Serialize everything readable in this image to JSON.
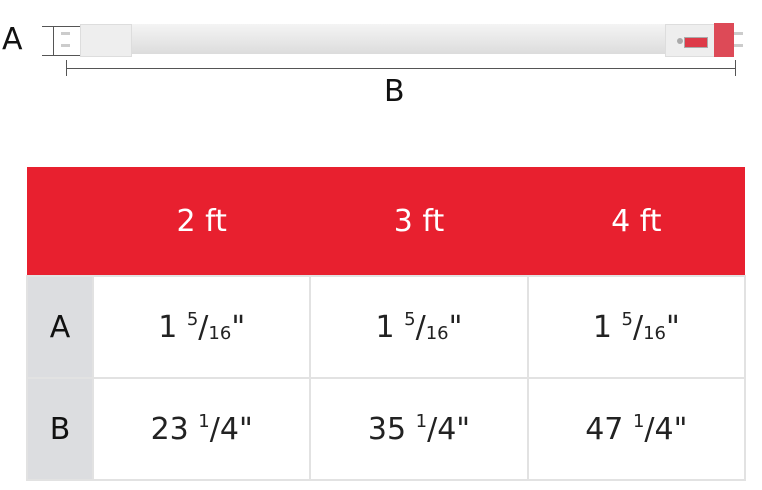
{
  "labels": {
    "a": "A",
    "b": "B"
  },
  "colors": {
    "header": "#e8202f",
    "row_label_bg": "#dcdde0",
    "tube_cap": "#dd4a57"
  },
  "table": {
    "headers": [
      "",
      "2 ft",
      "3 ft",
      "4 ft"
    ],
    "rows": [
      {
        "label": "A",
        "cells": [
          {
            "whole": "1",
            "num": "5",
            "den": "16",
            "unit": "\""
          },
          {
            "whole": "1",
            "num": "5",
            "den": "16",
            "unit": "\""
          },
          {
            "whole": "1",
            "num": "5",
            "den": "16",
            "unit": "\""
          }
        ]
      },
      {
        "label": "B",
        "cells": [
          {
            "whole": "23",
            "num": "1",
            "den": "4",
            "unit": "\""
          },
          {
            "whole": "35",
            "num": "1",
            "den": "4",
            "unit": "\""
          },
          {
            "whole": "47",
            "num": "1",
            "den": "4",
            "unit": "\""
          }
        ]
      }
    ]
  }
}
